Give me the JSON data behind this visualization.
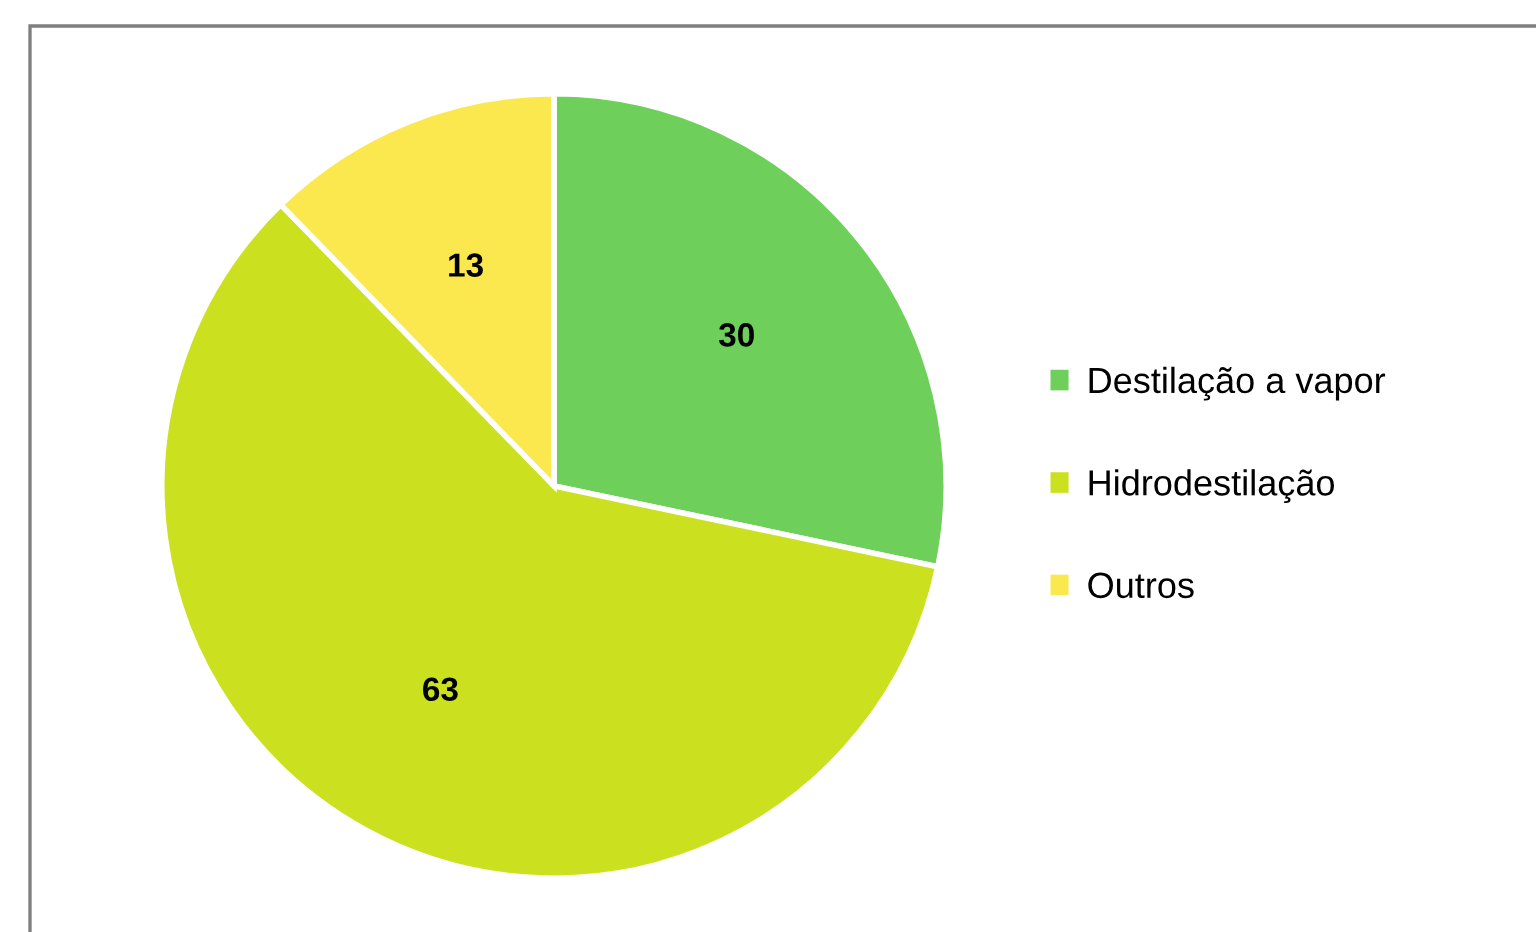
{
  "chart_data": {
    "type": "pie",
    "categories": [
      "Destilação a vapor",
      "Hidrodestilação",
      "Outros"
    ],
    "values": [
      30,
      63,
      13
    ],
    "colors": [
      "#6fcf5b",
      "#cbe11f",
      "#fbe84e"
    ],
    "data_labels": true,
    "legend": "right"
  }
}
